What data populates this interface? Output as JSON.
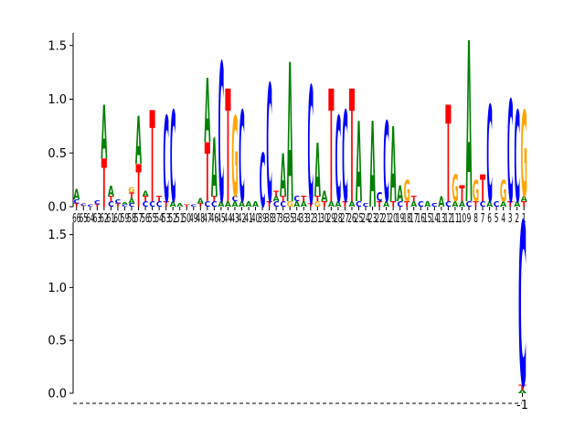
{
  "colors": {
    "A": "#008000",
    "C": "#0000ff",
    "G": "#ffa500",
    "T": "#ff0000",
    "axis": "#000000"
  },
  "chart_data": [
    {
      "type": "sequence-logo",
      "title": "",
      "xlabel": "",
      "ylabel": "",
      "ylim": [
        0,
        1.6
      ],
      "yticks": [
        0.0,
        0.5,
        1.0,
        1.5
      ],
      "ytick_labels": [
        "0.0",
        "0.5",
        "1.0",
        "1.5"
      ],
      "xtick_labels": [
        "66",
        "65",
        "64",
        "63",
        "62",
        "61",
        "60",
        "59",
        "58",
        "57",
        "56",
        "55",
        "54",
        "53",
        "52",
        "51",
        "50",
        "49",
        "48",
        "47",
        "46",
        "45",
        "44",
        "43",
        "42",
        "41",
        "40",
        "39",
        "38",
        "37",
        "36",
        "35",
        "34",
        "33",
        "32",
        "31",
        "30",
        "29",
        "28",
        "27",
        "26",
        "25",
        "24",
        "23",
        "22",
        "21",
        "20",
        "19",
        "18",
        "17",
        "16",
        "15",
        "14",
        "13",
        "12",
        "11",
        "10",
        "9",
        "8",
        "7",
        "6",
        "5",
        "4",
        "3",
        "2",
        "1"
      ],
      "columns": [
        {
          "A": 0.1,
          "C": 0.04,
          "T": 0.03
        },
        {
          "C": 0.02,
          "T": 0.01
        },
        {
          "C": 0.02
        },
        {
          "C": 0.04,
          "T": 0.02
        },
        {
          "A": 0.5,
          "T": 0.45
        },
        {
          "A": 0.1,
          "C": 0.05,
          "T": 0.05
        },
        {
          "C": 0.04,
          "T": 0.03
        },
        {
          "C": 0.02,
          "A": 0.02
        },
        {
          "A": 0.05,
          "T": 0.05,
          "G": 0.05,
          "C": 0.03
        },
        {
          "A": 0.45,
          "T": 0.4
        },
        {
          "C": 0.05,
          "T": 0.05,
          "A": 0.05
        },
        {
          "T": 0.85,
          "C": 0.05
        },
        {
          "C": 0.05,
          "T": 0.05
        },
        {
          "C": 0.8,
          "T": 0.05
        },
        {
          "C": 0.85,
          "A": 0.05
        },
        {
          "A": 0.03
        },
        {
          "T": 0.02
        },
        {
          "C": 0.02
        },
        {
          "A": 0.05,
          "T": 0.03
        },
        {
          "A": 0.6,
          "T": 0.55,
          "C": 0.05
        },
        {
          "A": 0.55,
          "C": 0.05,
          "T": 0.05
        },
        {
          "C": 1.3,
          "A": 0.05
        },
        {
          "T": 1.05,
          "A": 0.05
        },
        {
          "G": 0.75,
          "A": 0.05,
          "C": 0.05
        },
        {
          "C": 0.85,
          "A": 0.05
        },
        {
          "A": 0.05
        },
        {
          "A": 0.05
        },
        {
          "C": 0.5
        },
        {
          "C": 1.1,
          "T": 0.05
        },
        {
          "C": 0.05,
          "A": 0.05,
          "T": 0.05
        },
        {
          "A": 0.4,
          "C": 0.05,
          "T": 0.05
        },
        {
          "A": 1.3,
          "G": 0.05
        },
        {
          "A": 0.05,
          "C": 0.05
        },
        {
          "A": 0.05,
          "T": 0.05
        },
        {
          "C": 1.1,
          "T": 0.03
        },
        {
          "A": 0.5,
          "G": 0.05,
          "T": 0.05
        },
        {
          "A": 0.1,
          "T": 0.05
        },
        {
          "T": 1.05,
          "A": 0.05
        },
        {
          "C": 0.8,
          "A": 0.05
        },
        {
          "C": 0.85,
          "T": 0.05
        },
        {
          "T": 1.05,
          "A": 0.05
        },
        {
          "A": 0.75,
          "C": 0.05
        },
        {
          "C": 0.03
        },
        {
          "A": 0.8
        },
        {
          "C": 0.08,
          "T": 0.05
        },
        {
          "C": 0.75,
          "A": 0.05
        },
        {
          "A": 0.7,
          "T": 0.05
        },
        {
          "A": 0.15,
          "C": 0.05
        },
        {
          "G": 0.2,
          "T": 0.05
        },
        {
          "A": 0.05,
          "T": 0.05
        },
        {
          "C": 0.05
        },
        {
          "A": 0.05
        },
        {
          "C": 0.03
        },
        {
          "A": 0.1
        },
        {
          "T": 0.9,
          "C": 0.05
        },
        {
          "G": 0.25,
          "A": 0.05
        },
        {
          "T": 0.15,
          "A": 0.05
        },
        {
          "A": 1.5,
          "C": 0.05
        },
        {
          "G": 0.2,
          "T": 0.05
        },
        {
          "T": 0.25,
          "C": 0.05
        },
        {
          "C": 0.9,
          "A": 0.05
        },
        {
          "C": 0.05
        },
        {
          "G": 0.2,
          "A": 0.05
        },
        {
          "C": 0.95,
          "T": 0.05
        },
        {
          "C": 0.85,
          "A": 0.05
        },
        {
          "G": 0.8,
          "T": 0.05,
          "A": 0.05
        }
      ]
    },
    {
      "type": "sequence-logo",
      "title": "",
      "xlabel": "",
      "ylabel": "",
      "ylim": [
        0,
        1.6
      ],
      "yticks": [
        0.0,
        0.5,
        1.0,
        1.5
      ],
      "ytick_labels": [
        "0.0",
        "0.5",
        "1.0",
        "1.5"
      ],
      "xtick_labels": [
        "-1"
      ],
      "columns": [
        {
          "C": 1.55,
          "T": 0.05,
          "A": 0.03
        }
      ]
    }
  ]
}
